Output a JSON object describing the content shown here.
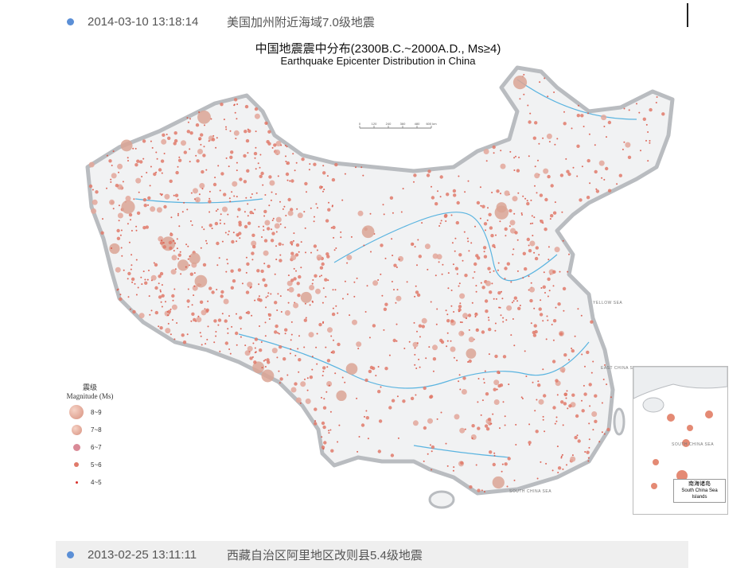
{
  "news_top": {
    "date": "2014-03-10 13:18:14",
    "text": "美国加州附近海域7.0级地震"
  },
  "news_bottom": {
    "date": "2013-02-25 13:11:11",
    "text": "西藏自治区阿里地区改则县5.4级地震"
  },
  "map": {
    "title_cn": "中国地震震中分布(2300B.C.~2000A.D., Ms≥4)",
    "title_en": "Earthquake Epicenter Distribution in China",
    "scale_ticks": [
      "0",
      "120",
      "240",
      "360",
      "480",
      "600 km"
    ],
    "legend": {
      "title_cn": "震级",
      "title_en": "Magnitude (Ms)",
      "items": [
        {
          "label": "8~9"
        },
        {
          "label": "7~8"
        },
        {
          "label": "6~7"
        },
        {
          "label": "5~6"
        },
        {
          "label": "4~5"
        }
      ]
    },
    "seas": {
      "yellow": "YELLOW SEA",
      "east": "EAST CHINA SEA",
      "south": "SOUTH CHINA SEA"
    },
    "inset": {
      "title_cn": "南海诸岛",
      "title_en": "South China Sea Islands",
      "sea": "SOUTH CHINA SEA"
    },
    "colors": {
      "epicenter": "#d9503f",
      "epicenter_large": "#dba494",
      "river": "#5ab4e0",
      "land": "#f1f2f3",
      "border": "#b9bcc0",
      "bullet": "#5b8fd6"
    }
  }
}
